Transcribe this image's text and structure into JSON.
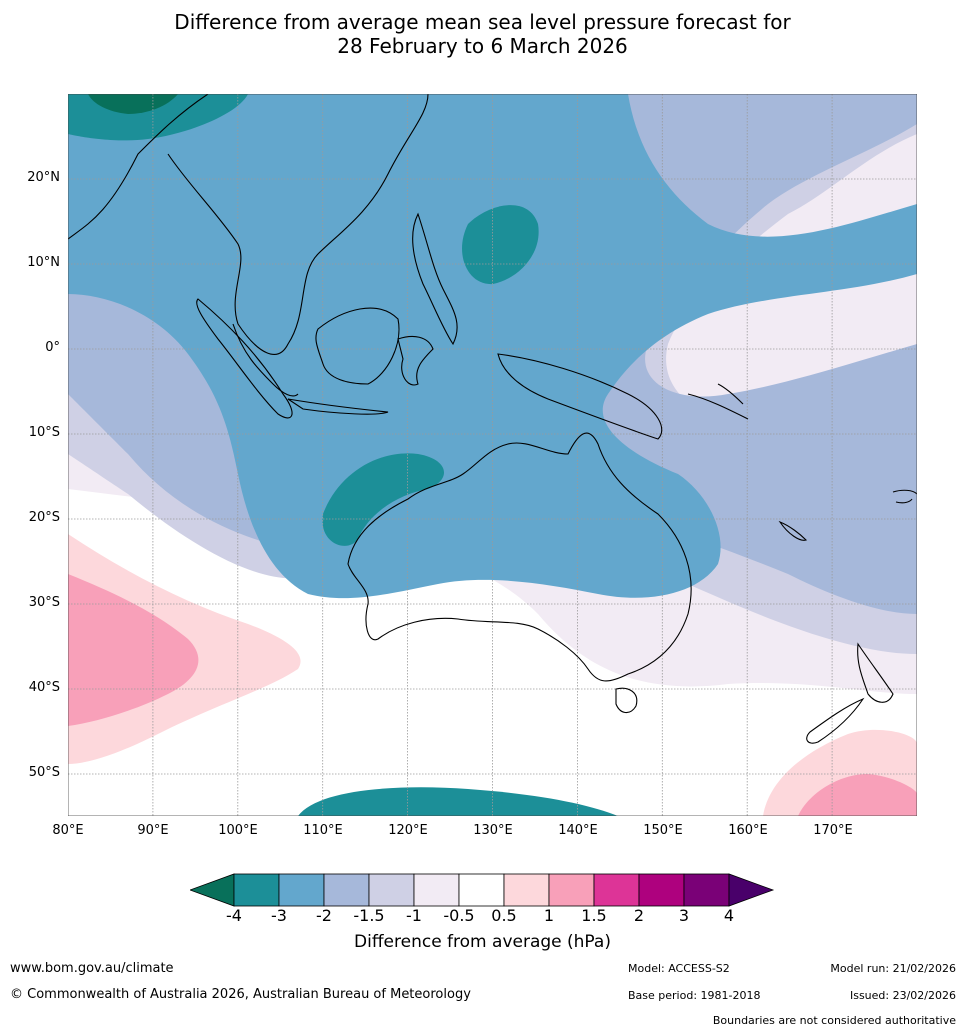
{
  "title": {
    "line1": "Difference from average mean sea level pressure forecast for",
    "line2": "28 February to 6 March 2026"
  },
  "map": {
    "lat_labels": [
      "20°N",
      "10°N",
      "0°",
      "10°S",
      "20°S",
      "30°S",
      "40°S",
      "50°S"
    ],
    "lon_labels": [
      "80°E",
      "90°E",
      "100°E",
      "110°E",
      "120°E",
      "130°E",
      "140°E",
      "150°E",
      "160°E",
      "170°E"
    ]
  },
  "legend": {
    "ticks": [
      "-4",
      "-3",
      "-2",
      "-1.5",
      "-1",
      "-0.5",
      "0.5",
      "1",
      "1.5",
      "2",
      "3",
      "4"
    ],
    "label": "Difference from average (hPa)",
    "colors": [
      "#08705a",
      "#1c8f98",
      "#63a7cd",
      "#a6b8da",
      "#cfd0e5",
      "#f2ebf4",
      "#ffffff",
      "#fdd8dc",
      "#f8a0b9",
      "#dd3497",
      "#ae017e",
      "#7a0177",
      "#49006a"
    ]
  },
  "footer": {
    "url": "www.bom.gov.au/climate",
    "copyright": "© Commonwealth of Australia 2026, Australian Bureau of Meteorology",
    "model": "Model: ACCESS-S2",
    "base_period": "Base period: 1981-2018",
    "model_run": "Model run: 21/02/2026",
    "issued": "Issued: 23/02/2026",
    "disclaimer": "Boundaries are not considered authoritative"
  }
}
